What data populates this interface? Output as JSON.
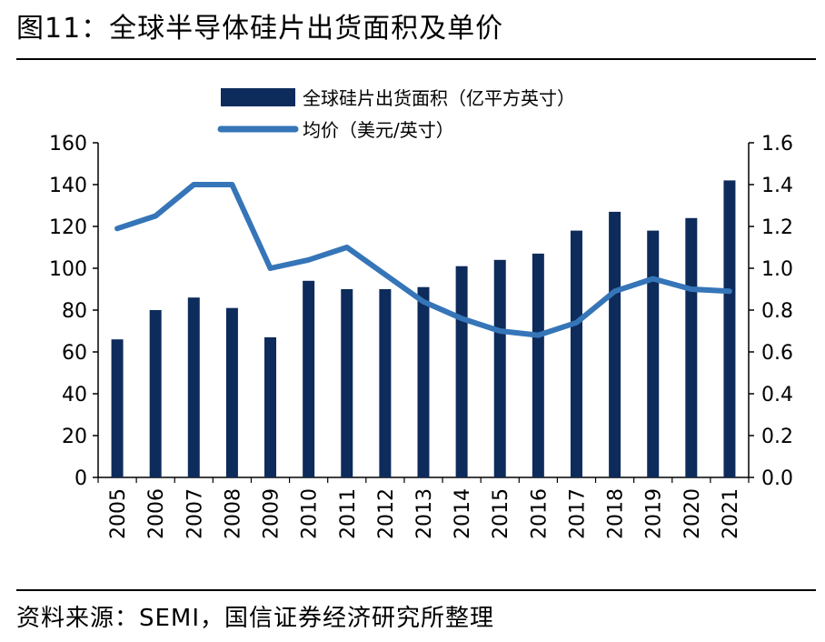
{
  "figure_title": "图11：全球半导体硅片出货面积及单价",
  "source": "资料来源：SEMI，国信证券经济研究所整理",
  "colors": {
    "bar": "#0d2b5b",
    "line": "#3575b8",
    "axis": "#000000",
    "text": "#000000"
  },
  "chart_data": {
    "type": "bar+line",
    "categories": [
      "2005",
      "2006",
      "2007",
      "2008",
      "2009",
      "2010",
      "2011",
      "2012",
      "2013",
      "2014",
      "2015",
      "2016",
      "2017",
      "2018",
      "2019",
      "2020",
      "2021"
    ],
    "series": [
      {
        "name": "全球硅片出货面积（亿平方英寸）",
        "type": "bar",
        "axis": "left",
        "values": [
          66,
          80,
          86,
          81,
          67,
          94,
          90,
          90,
          91,
          101,
          104,
          107,
          118,
          127,
          118,
          124,
          142
        ]
      },
      {
        "name": "均价（美元/英寸）",
        "type": "line",
        "axis": "right",
        "values": [
          1.19,
          1.25,
          1.4,
          1.4,
          1.0,
          1.04,
          1.1,
          0.97,
          0.84,
          0.76,
          0.7,
          0.68,
          0.74,
          0.89,
          0.95,
          0.9,
          0.89
        ]
      }
    ],
    "left_axis": {
      "ylim": [
        0,
        160
      ],
      "ticks": [
        0,
        20,
        40,
        60,
        80,
        100,
        120,
        140,
        160
      ]
    },
    "right_axis": {
      "ylim": [
        0,
        1.6
      ],
      "ticks": [
        "0.0",
        "0.2",
        "0.4",
        "0.6",
        "0.8",
        "1.0",
        "1.2",
        "1.4",
        "1.6"
      ]
    },
    "legend_position": "top-center",
    "grid": false
  }
}
